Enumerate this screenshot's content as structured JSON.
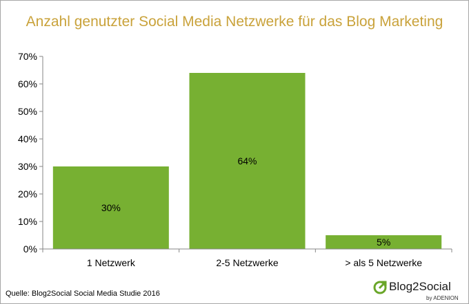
{
  "chart_data": {
    "type": "bar",
    "title": "Anzahl genutzter Social Media Netzwerke für das Blog Marketing",
    "categories": [
      "1 Netzwerk",
      "2-5 Netzwerke",
      "> als 5 Netzwerke"
    ],
    "values": [
      30,
      64,
      5
    ],
    "value_labels": [
      "30%",
      "64%",
      "5%"
    ],
    "ylim": [
      0,
      70
    ],
    "yticks": [
      "0%",
      "10%",
      "20%",
      "30%",
      "40%",
      "50%",
      "60%",
      "70%"
    ],
    "grid": false,
    "legend": "none",
    "bar_color": "#77b032"
  },
  "source": "Quelle: Blog2Social Social Media Studie 2016",
  "logo": {
    "name": "Blog2Social",
    "byline": "by ADENION",
    "icon": "arrow-circle-icon",
    "color": "#6aa629"
  }
}
